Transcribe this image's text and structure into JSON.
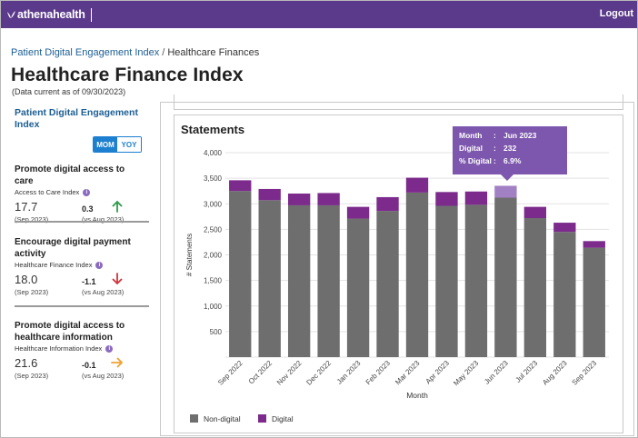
{
  "app": {
    "brand": "athenahealth",
    "logout_label": "Logout"
  },
  "breadcrumb": {
    "parent": "Patient Digital Engagement Index",
    "separator": "/",
    "current": "Healthcare Finances"
  },
  "page": {
    "title": "Healthcare Finance Index",
    "data_current": "(Data current as of 09/30/2023)"
  },
  "sidebar": {
    "title": "Patient Digital Engagement Index",
    "toggle": {
      "mom": "MOM",
      "yoy": "YOY",
      "selected": "MOM"
    },
    "metrics": [
      {
        "title": "Promote digital access to care",
        "subtitle": "Access to Care Index",
        "value": "17.7",
        "date": "(Sep 2023)",
        "delta": "0.3",
        "vs": "(vs Aug 2023)",
        "direction": "up",
        "arrow_color": "#2e9a4a"
      },
      {
        "title": "Encourage digital payment activity",
        "subtitle": "Healthcare Finance Index",
        "value": "18.0",
        "date": "(Sep 2023)",
        "delta": "-1.1",
        "vs": "(vs Aug 2023)",
        "direction": "down",
        "arrow_color": "#d0343c"
      },
      {
        "title": "Promote digital access to healthcare information",
        "subtitle": "Healthcare Information Index",
        "value": "21.6",
        "date": "(Sep 2023)",
        "delta": "-0.1",
        "vs": "(vs Aug 2023)",
        "direction": "right",
        "arrow_color": "#f0a030"
      }
    ]
  },
  "chart_panel": {
    "title": "Statements"
  },
  "tooltip": {
    "rows": [
      {
        "key": "Month",
        "value": "Jun 2023"
      },
      {
        "key": "Digital",
        "value": "232"
      },
      {
        "key": "% Digital",
        "value": "6.9%"
      }
    ]
  },
  "chart_data": {
    "type": "bar",
    "stacked": true,
    "title": "Statements",
    "xlabel": "Month",
    "ylabel": "# Statements",
    "ylim": [
      0,
      4000
    ],
    "yticks": [
      0,
      500,
      1000,
      1500,
      2000,
      2500,
      3000,
      3500,
      4000
    ],
    "ytick_labels": [
      "",
      "500",
      "1,000",
      "1,500",
      "2,000",
      "2,500",
      "3,000",
      "3,500",
      "4,000"
    ],
    "grid": true,
    "legend_position": "bottom-left",
    "categories": [
      "Sep 2022",
      "Oct 2022",
      "Nov 2022",
      "Dec 2022",
      "Jan 2023",
      "Feb 2023",
      "Mar 2023",
      "Apr 2023",
      "May 2023",
      "Jun 2023",
      "Jul 2023",
      "Aug 2023",
      "Sep 2023"
    ],
    "series": [
      {
        "name": "Non-digital",
        "color": "#6e6e6e",
        "values": [
          3250,
          3070,
          2970,
          2970,
          2710,
          2860,
          3220,
          2960,
          2980,
          3120,
          2720,
          2450,
          2140
        ]
      },
      {
        "name": "Digital",
        "color": "#7c2b8c",
        "values": [
          210,
          220,
          230,
          240,
          230,
          270,
          290,
          270,
          260,
          232,
          220,
          180,
          130
        ]
      }
    ],
    "highlight": {
      "category": "Jun 2023",
      "color": "#a280c4"
    }
  }
}
